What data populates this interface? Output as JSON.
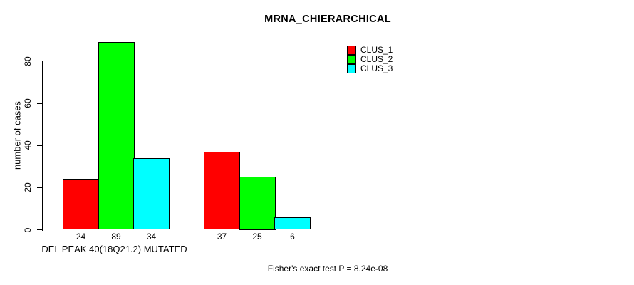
{
  "chart_data": {
    "type": "bar",
    "title": "MRNA_CHIERARCHICAL",
    "ylabel": "number of cases",
    "yticks": [
      0,
      20,
      40,
      60,
      80
    ],
    "ylim": [
      0,
      89
    ],
    "grid": false,
    "categories": [
      "DEL PEAK 40(18Q21.2) MUTATED",
      ""
    ],
    "series": [
      {
        "name": "CLUS_1",
        "color": "#ff0000",
        "values": [
          24,
          37
        ]
      },
      {
        "name": "CLUS_2",
        "color": "#00ff00",
        "values": [
          89,
          25
        ]
      },
      {
        "name": "CLUS_3",
        "color": "#00ffff",
        "values": [
          34,
          6
        ]
      }
    ],
    "legend": {
      "position": "top-right",
      "entries": [
        "CLUS_1",
        "CLUS_2",
        "CLUS_3"
      ]
    },
    "annotation": "Fisher's exact test P = 8.24e-08"
  }
}
